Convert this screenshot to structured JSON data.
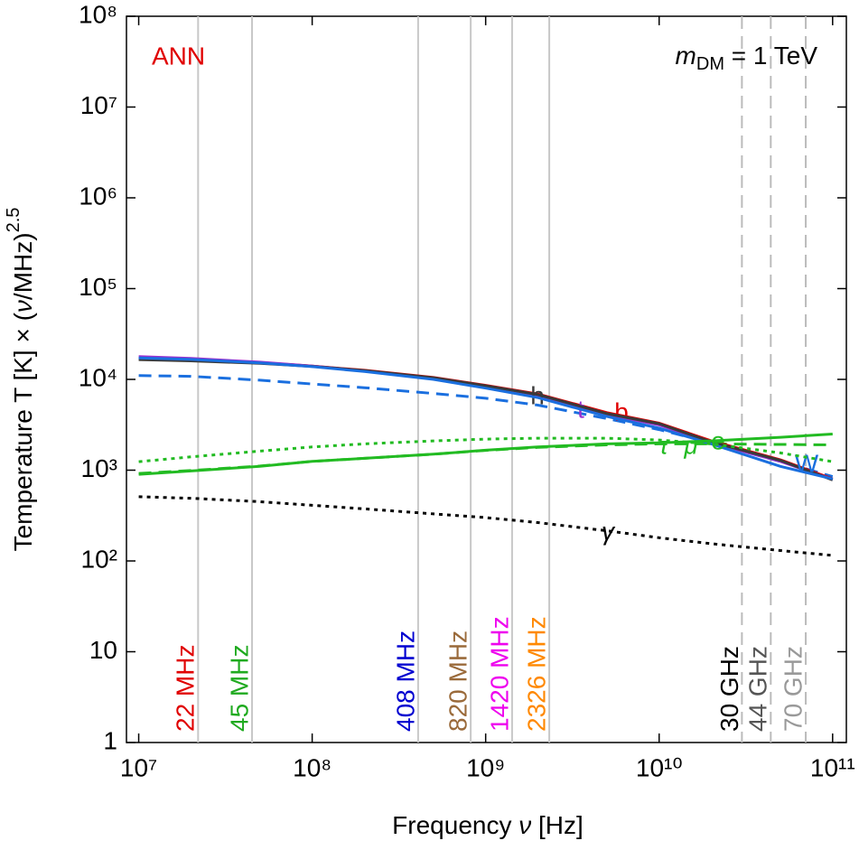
{
  "chart_data": {
    "type": "line",
    "title_left": "ANN",
    "title_left_color": "#e00000",
    "model_label": {
      "m": "m",
      "sub": "DM",
      "rest": " = 1 TeV"
    },
    "xlabel": {
      "text": "Frequency ",
      "var": "ν",
      "unit": " [Hz]"
    },
    "ylabel": {
      "text": "Temperature T [K] × (",
      "var": "ν",
      "unit": "/MHz)",
      "sup": "2.5"
    },
    "log_x": true,
    "log_y": true,
    "xlim": [
      8500000,
      120000000000
    ],
    "ylim": [
      1,
      100000000
    ],
    "xticks": [
      {
        "value": 10000000,
        "label": "10⁷"
      },
      {
        "value": 100000000,
        "label": "10⁸"
      },
      {
        "value": 1000000000,
        "label": "10⁹"
      },
      {
        "value": 10000000000,
        "label": "10¹⁰"
      },
      {
        "value": 100000000000,
        "label": "10¹¹"
      }
    ],
    "yticks": [
      1,
      10,
      {
        "value": 100,
        "label": "10²"
      },
      {
        "value": 1000,
        "label": "10³"
      },
      {
        "value": 10000,
        "label": "10⁴"
      },
      {
        "value": 100000,
        "label": "10⁵"
      },
      {
        "value": 1000000,
        "label": "10⁶"
      },
      {
        "value": 10000000,
        "label": "10⁷"
      },
      {
        "value": 100000000,
        "label": "10⁸"
      }
    ],
    "x": [
      10000000,
      20000000,
      50000000,
      100000000,
      200000000,
      500000000,
      1000000000,
      2000000000,
      5000000000,
      10000000000,
      20000000000,
      50000000000,
      100000000000
    ],
    "series": [
      {
        "name": "b",
        "color": "#e00000",
        "dash": "solid",
        "values": [
          17000,
          16500,
          15300,
          14000,
          12600,
          10500,
          8600,
          6900,
          4300,
          3300,
          2100,
          1300,
          800
        ]
      },
      {
        "name": "t",
        "color": "#9b30d0",
        "dash": "solid",
        "values": [
          17800,
          17000,
          15500,
          14000,
          12400,
          10200,
          8300,
          6600,
          4100,
          3150,
          2000,
          1250,
          790
        ]
      },
      {
        "name": "h",
        "color": "#3a3a3a",
        "dash": "solid",
        "values": [
          16500,
          16000,
          15000,
          13900,
          12500,
          10400,
          8500,
          6800,
          4200,
          3250,
          2050,
          1280,
          780
        ]
      },
      {
        "name": "W",
        "color": "#1a6fdf",
        "dash": "solid",
        "values": [
          17200,
          16600,
          15200,
          13800,
          12200,
          10000,
          8000,
          6300,
          3900,
          2900,
          1950,
          1100,
          800
        ]
      },
      {
        "color": "#1a6fdf",
        "dash": "dashed",
        "values": [
          11000,
          10800,
          9800,
          8900,
          8100,
          7000,
          6200,
          5200,
          3700,
          2800,
          2000,
          1250,
          850
        ]
      },
      {
        "name": "e",
        "color": "#22bb22",
        "dash": "solid",
        "values": [
          900,
          980,
          1100,
          1250,
          1350,
          1500,
          1660,
          1800,
          1950,
          2000,
          2100,
          2300,
          2500
        ]
      },
      {
        "name": "μ",
        "color": "#22bb22",
        "dash": "dashed",
        "values": [
          920,
          990,
          1110,
          1250,
          1350,
          1500,
          1650,
          1780,
          1900,
          1950,
          1950,
          1920,
          1900
        ]
      },
      {
        "name": "τ",
        "color": "#22bb22",
        "dash": "dotted",
        "values": [
          1240,
          1400,
          1620,
          1800,
          1950,
          2100,
          2200,
          2250,
          2250,
          2150,
          1950,
          1550,
          1240
        ]
      },
      {
        "name": "γ",
        "color": "#000000",
        "dash": "dotted",
        "values": [
          510,
          490,
          450,
          410,
          375,
          330,
          300,
          265,
          215,
          180,
          155,
          130,
          115
        ]
      }
    ],
    "frequency_lines": [
      {
        "label": "22 MHz",
        "x": 22000000,
        "color": "#e00000",
        "dashed": false
      },
      {
        "label": "45 MHz",
        "x": 45000000,
        "color": "#1faa1f",
        "dashed": false
      },
      {
        "label": "408 MHz",
        "x": 408000000,
        "color": "#0000d0",
        "dashed": false
      },
      {
        "label": "820 MHz",
        "x": 820000000,
        "color": "#9a6a3a",
        "dashed": false
      },
      {
        "label": "1420 MHz",
        "x": 1420000000,
        "color": "#ee00ee",
        "dashed": false
      },
      {
        "label": "2326 MHz",
        "x": 2326000000,
        "color": "#ff8800",
        "dashed": false
      },
      {
        "label": "30 GHz",
        "x": 30000000000,
        "color": "#000000",
        "dashed": true
      },
      {
        "label": "44 GHz",
        "x": 44000000000,
        "color": "#555555",
        "dashed": true
      },
      {
        "label": "70 GHz",
        "x": 70000000000,
        "color": "#999999",
        "dashed": true
      }
    ]
  }
}
